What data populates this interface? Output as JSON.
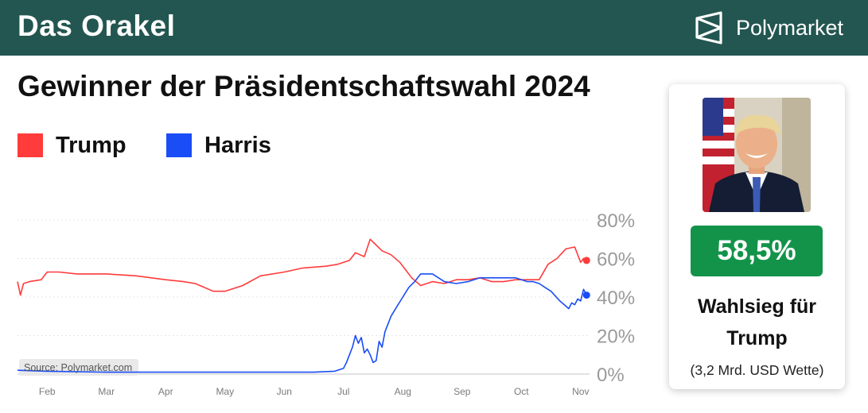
{
  "header": {
    "title": "Das Orakel",
    "brand": "Polymarket"
  },
  "headline": "Gewinner der Präsidentschaftswahl 2024",
  "legend": [
    {
      "label": "Trump",
      "color": "#ff3b3b"
    },
    {
      "label": "Harris",
      "color": "#1a4df5"
    }
  ],
  "card": {
    "percent": "58,5%",
    "win_label_line1": "Wahlsieg für",
    "win_label_line2": "Trump",
    "bet_label": "(3,2 Mrd. USD Wette)",
    "badge_color": "#13934a"
  },
  "chart_data": {
    "type": "line",
    "source": "Source: Polymarket.com",
    "x_unit": "months since Jan 1, 2024",
    "xlim": [
      0.5,
      10.15
    ],
    "ylim": [
      0,
      80
    ],
    "y_ticks": [
      0,
      20,
      40,
      60,
      80
    ],
    "y_tick_labels": [
      "0%",
      "20%",
      "40%",
      "60%",
      "80%"
    ],
    "x_ticks": [
      1,
      2,
      3,
      4,
      5,
      6,
      7,
      8,
      9,
      10
    ],
    "x_tick_labels": [
      "Feb",
      "Mar",
      "Apr",
      "May",
      "Jun",
      "Jul",
      "Aug",
      "Sep",
      "Oct",
      "Nov"
    ],
    "grid": true,
    "series": [
      {
        "name": "Trump",
        "color": "#ff3b3b",
        "x": [
          0.5,
          0.55,
          0.6,
          0.7,
          0.9,
          1.0,
          1.2,
          1.5,
          2.0,
          2.5,
          3.0,
          3.3,
          3.5,
          3.8,
          4.0,
          4.3,
          4.6,
          5.0,
          5.3,
          5.7,
          5.9,
          6.1,
          6.2,
          6.35,
          6.45,
          6.55,
          6.65,
          6.8,
          6.95,
          7.05,
          7.15,
          7.3,
          7.5,
          7.7,
          7.9,
          8.1,
          8.3,
          8.5,
          8.7,
          8.9,
          9.1,
          9.3,
          9.45,
          9.6,
          9.75,
          9.9,
          10.0,
          10.05,
          10.1
        ],
        "y": [
          48,
          41,
          47,
          48,
          49,
          53,
          53,
          52,
          52,
          51,
          49,
          48,
          47,
          43,
          43,
          46,
          51,
          53,
          55,
          56,
          57,
          59,
          63,
          61,
          70,
          67,
          64,
          62,
          58,
          54,
          50,
          46,
          48,
          47,
          49,
          49,
          50,
          48,
          48,
          49,
          49,
          49,
          57,
          60,
          65,
          66,
          58,
          60,
          59
        ]
      },
      {
        "name": "Harris",
        "color": "#1a4df5",
        "x": [
          0.5,
          1.0,
          2.0,
          3.0,
          4.0,
          5.0,
          5.5,
          5.85,
          6.0,
          6.05,
          6.1,
          6.15,
          6.2,
          6.25,
          6.3,
          6.35,
          6.4,
          6.45,
          6.5,
          6.55,
          6.6,
          6.65,
          6.7,
          6.8,
          6.9,
          7.0,
          7.1,
          7.2,
          7.3,
          7.5,
          7.7,
          7.9,
          8.1,
          8.3,
          8.5,
          8.7,
          8.9,
          9.1,
          9.2,
          9.3,
          9.4,
          9.5,
          9.65,
          9.8,
          9.85,
          9.9,
          9.95,
          10.0,
          10.05,
          10.1
        ],
        "y": [
          2,
          1.5,
          1,
          1,
          1,
          1,
          1,
          1.5,
          3,
          6,
          10,
          14,
          20,
          16,
          19,
          11,
          13,
          10,
          6,
          7,
          17,
          14,
          22,
          30,
          35,
          40,
          45,
          48,
          52,
          52,
          48,
          47,
          48,
          50,
          50,
          50,
          50,
          48,
          48,
          47,
          45,
          43,
          38,
          34,
          37,
          36,
          39,
          38,
          44,
          41
        ]
      }
    ]
  }
}
